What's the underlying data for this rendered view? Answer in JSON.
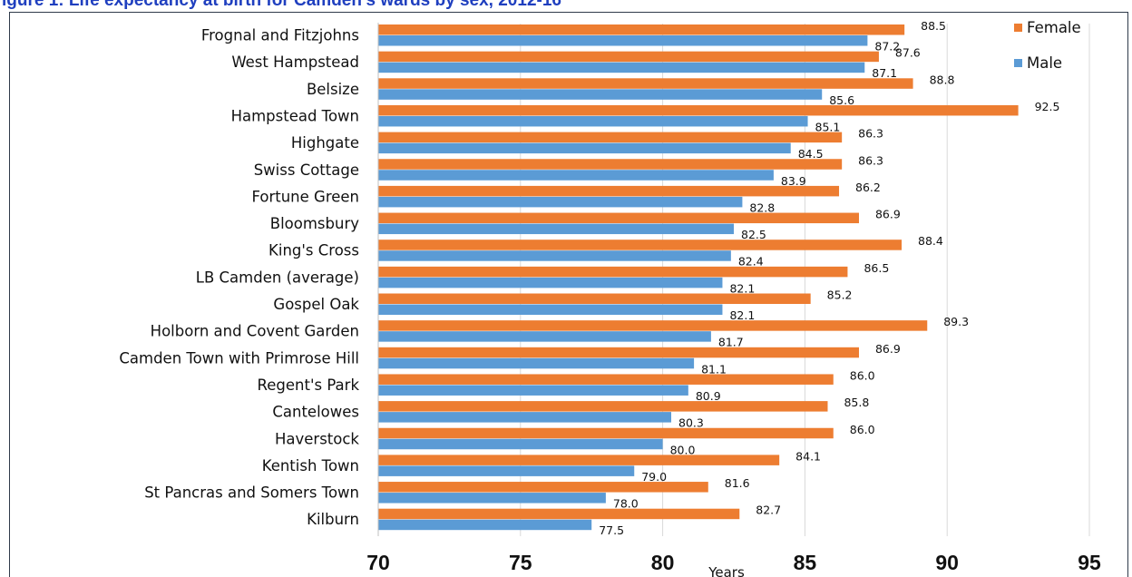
{
  "title": "igure 1: Life expectancy at birth for Camden's wards by sex, 2012-16",
  "chart_data": {
    "type": "bar",
    "orientation": "horizontal",
    "categories": [
      "Frognal and Fitzjohns",
      "West Hampstead",
      "Belsize",
      "Hampstead Town",
      "Highgate",
      "Swiss Cottage",
      "Fortune Green",
      "Bloomsbury",
      "King's Cross",
      "LB Camden (average)",
      "Gospel Oak",
      "Holborn and Covent Garden",
      "Camden Town with Primrose Hill",
      "Regent's Park",
      "Cantelowes",
      "Haverstock",
      "Kentish Town",
      "St Pancras and Somers Town",
      "Kilburn"
    ],
    "series": [
      {
        "name": "Female",
        "color": "#ed7d31",
        "values": [
          88.5,
          87.6,
          88.8,
          92.5,
          86.3,
          86.3,
          86.2,
          86.9,
          88.4,
          86.5,
          85.2,
          89.3,
          86.9,
          86.0,
          85.8,
          86.0,
          84.1,
          81.6,
          82.7
        ],
        "labels": [
          "88.5",
          "87.6",
          "88.8",
          "92.5",
          "86.3",
          "86.3",
          "86.2",
          "86.9",
          "88.4",
          "86.5",
          "85.2",
          "89.3",
          "86.9",
          "86.0",
          "85.8",
          "86.0",
          "84.1",
          "81.6",
          "82.7"
        ]
      },
      {
        "name": "Male",
        "color": "#5b9bd5",
        "values": [
          87.2,
          87.1,
          85.6,
          85.1,
          84.5,
          83.9,
          82.8,
          82.5,
          82.4,
          82.1,
          82.1,
          81.7,
          81.1,
          80.9,
          80.3,
          80.0,
          79.0,
          78.0,
          77.5
        ],
        "labels": [
          "87.2",
          "87.1",
          "85.6",
          "85.1",
          "84.5",
          "83.9",
          "82.8",
          "82.5",
          "82.4",
          "82.1",
          "82.1",
          "81.7",
          "81.1",
          "80.9",
          "80.3",
          "80.0",
          "79.0",
          "78.0",
          "77.5"
        ]
      }
    ],
    "xlim": [
      70,
      95
    ],
    "xticks": [
      "70",
      "75",
      "80",
      "85",
      "90",
      "95"
    ],
    "xlabel": "Years",
    "legend_position": "top-right",
    "grid": "vertical"
  }
}
